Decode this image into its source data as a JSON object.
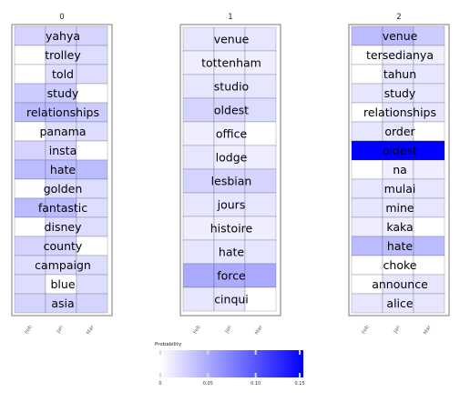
{
  "chart_data": {
    "type": "heatmap",
    "x_tick_labels": [
      "Feb",
      "Jan",
      "Mar"
    ],
    "colorbar": {
      "label": "Probability",
      "range": [
        0,
        0.15
      ],
      "ticks": [
        "0",
        "0.05",
        "0.10",
        "0.15"
      ],
      "color_low": "#ffffff",
      "color_high": "#0000ff"
    },
    "panels": [
      {
        "title": "0",
        "words": [
          "yahya",
          "trolley",
          "told",
          "study",
          "relationships",
          "panama",
          "insta",
          "hate",
          "golden",
          "fantastic",
          "disney",
          "county",
          "campaign",
          "blue",
          "asia"
        ],
        "values": [
          [
            0.025,
            0.025,
            0.025
          ],
          [
            0.0,
            0.02,
            0.02
          ],
          [
            0.0,
            0.02,
            0.02
          ],
          [
            0.03,
            0.03,
            0.0
          ],
          [
            0.04,
            0.04,
            0.03
          ],
          [
            0.0,
            0.02,
            0.02
          ],
          [
            0.025,
            0.025,
            0.0
          ],
          [
            0.04,
            0.04,
            0.04
          ],
          [
            0.0,
            0.02,
            0.02
          ],
          [
            0.04,
            0.04,
            0.02
          ],
          [
            0.0,
            0.02,
            0.02
          ],
          [
            0.025,
            0.025,
            0.0
          ],
          [
            0.02,
            0.02,
            0.02
          ],
          [
            0.02,
            0.0,
            0.02
          ],
          [
            0.025,
            0.025,
            0.025
          ]
        ]
      },
      {
        "title": "1",
        "words": [
          "venue",
          "tottenham",
          "studio",
          "oldest",
          "office",
          "lodge",
          "lesbian",
          "jours",
          "histoire",
          "hate",
          "force",
          "cinqui"
        ],
        "values": [
          [
            0.015,
            0.015,
            0.015
          ],
          [
            0.01,
            0.01,
            0.01
          ],
          [
            0.015,
            0.015,
            0.015
          ],
          [
            0.025,
            0.025,
            0.02
          ],
          [
            0.01,
            0.01,
            0.0
          ],
          [
            0.015,
            0.01,
            0.01
          ],
          [
            0.025,
            0.025,
            0.025
          ],
          [
            0.015,
            0.015,
            0.015
          ],
          [
            0.01,
            0.01,
            0.01
          ],
          [
            0.015,
            0.015,
            0.015
          ],
          [
            0.05,
            0.05,
            0.05
          ],
          [
            0.015,
            0.015,
            0.0
          ]
        ]
      },
      {
        "title": "2",
        "words": [
          "venue",
          "tersedianya",
          "tahun",
          "study",
          "relationships",
          "order",
          "oldest",
          "na",
          "mulai",
          "mine",
          "kaka",
          "hate",
          "choke",
          "announce",
          "alice"
        ],
        "values": [
          [
            0.04,
            0.04,
            0.03
          ],
          [
            0.0,
            0.01,
            0.01
          ],
          [
            0.0,
            0.015,
            0.015
          ],
          [
            0.015,
            0.015,
            0.015
          ],
          [
            0.0,
            0.015,
            0.015
          ],
          [
            0.015,
            0.015,
            0.0
          ],
          [
            0.15,
            0.15,
            0.15
          ],
          [
            0.0,
            0.01,
            0.01
          ],
          [
            0.015,
            0.015,
            0.015
          ],
          [
            0.015,
            0.015,
            0.015
          ],
          [
            0.01,
            0.01,
            0.0
          ],
          [
            0.04,
            0.04,
            0.04
          ],
          [
            0.0,
            0.0,
            0.0
          ],
          [
            0.0,
            0.015,
            0.015
          ],
          [
            0.015,
            0.015,
            0.015
          ]
        ]
      }
    ]
  }
}
